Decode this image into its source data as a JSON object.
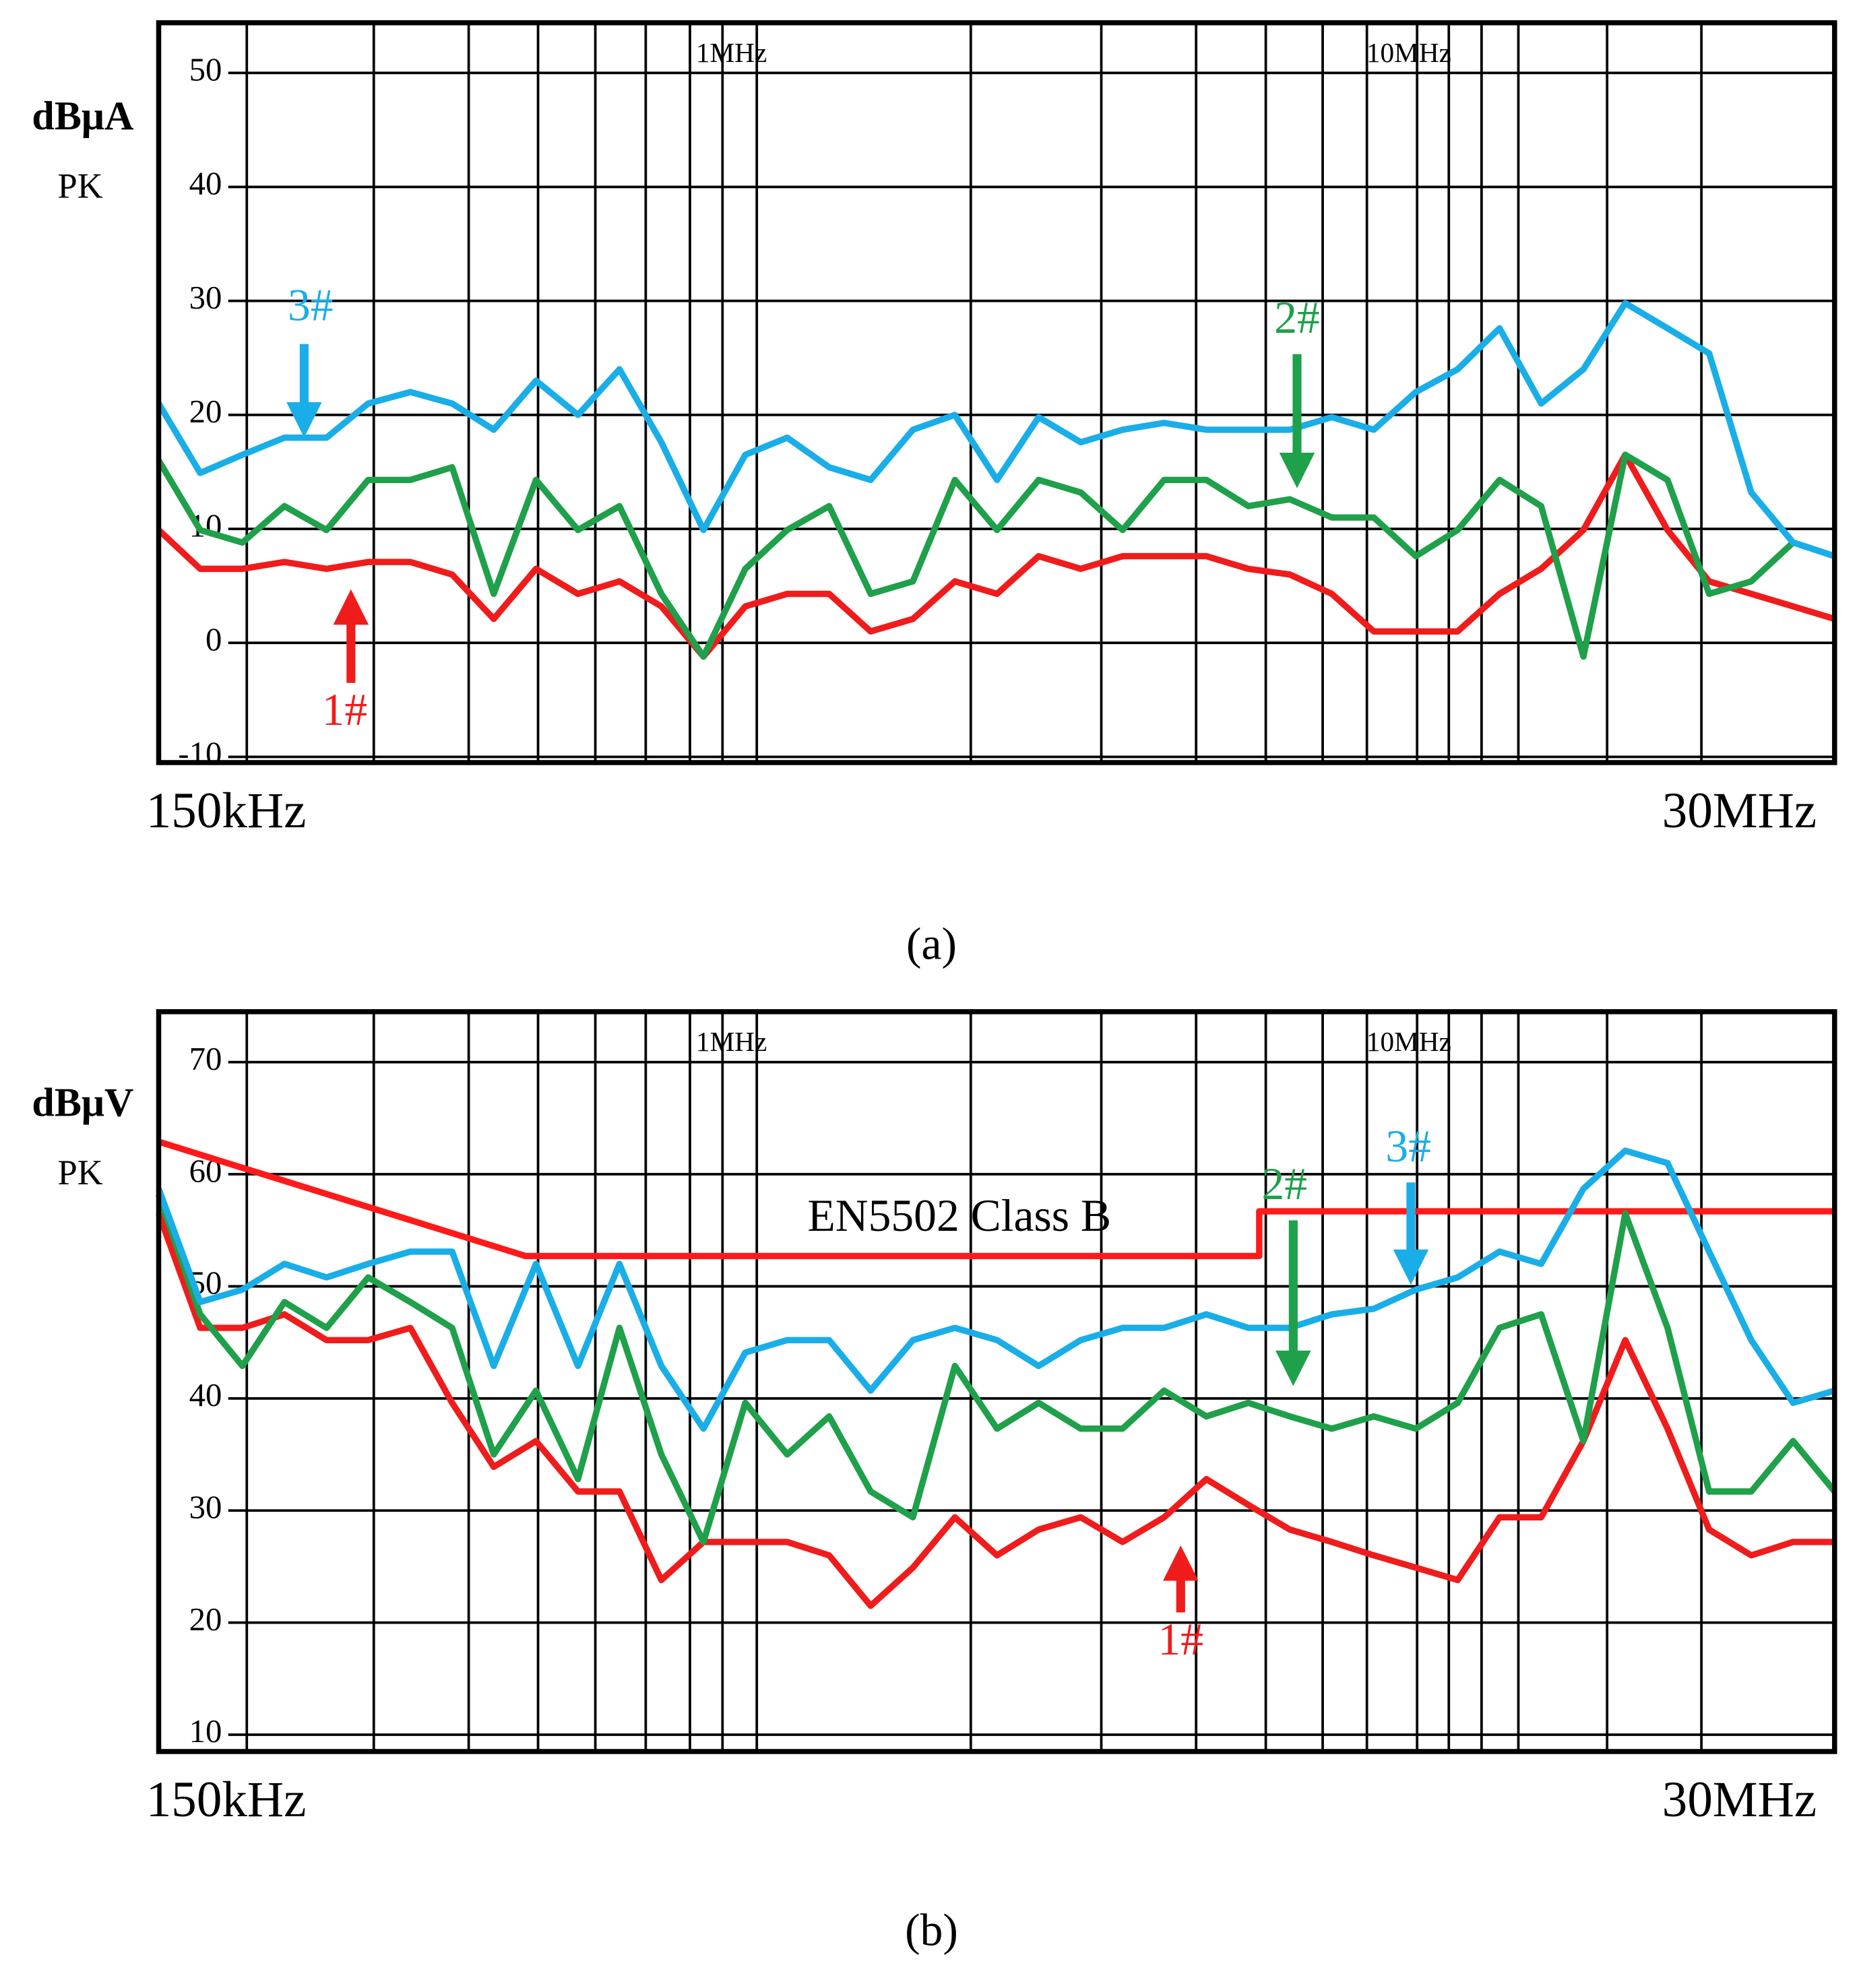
{
  "chart_data": [
    {
      "type": "line",
      "y_unit": "dBμA",
      "y_detector": "PK",
      "xscale": "log",
      "grid": true,
      "xlim": [
        0.15,
        47.4
      ],
      "ylim": [
        -10.5,
        54.4
      ],
      "xticks": [
        {
          "value": 0.15,
          "label": "150kHz"
        },
        {
          "value": 30,
          "label": "30MHz"
        }
      ],
      "xticks_top": [
        {
          "value": 1,
          "label": "1MHz"
        },
        {
          "value": 10,
          "label": "10MHz"
        }
      ],
      "xminor": [
        0.203,
        0.314,
        0.435,
        0.552,
        0.672,
        0.799,
        0.93,
        1.04,
        1.17,
        2.44,
        3.82,
        5.29,
        6.72,
        8.17,
        9.51,
        11.3,
        12.6,
        14.1,
        16.0,
        21.7,
        30.0
      ],
      "yticks": [
        -10,
        0,
        10,
        20,
        30,
        40,
        50
      ],
      "x": [
        0.15,
        0.173,
        0.2,
        0.231,
        0.267,
        0.308,
        0.356,
        0.411,
        0.474,
        0.548,
        0.633,
        0.73,
        0.843,
        0.974,
        1.125,
        1.299,
        1.5,
        1.73,
        2.0,
        2.31,
        2.67,
        3.08,
        3.56,
        4.11,
        4.74,
        5.48,
        6.33,
        7.3,
        8.43,
        9.74,
        11.25,
        12.99,
        15,
        17.3,
        20,
        23.1,
        26.7,
        30.8,
        35.6,
        41.1,
        47.4
      ],
      "series": [
        {
          "name": "3#",
          "color": "#19aee8",
          "values": [
            21,
            14.9,
            16.5,
            18,
            18,
            21,
            22,
            21,
            18.7,
            23,
            20,
            24,
            17.6,
            9.9,
            16.5,
            18,
            15.4,
            14.3,
            18.7,
            20,
            14.3,
            19.8,
            17.6,
            18.7,
            19.3,
            18.7,
            18.7,
            18.7,
            19.8,
            18.7,
            22,
            24,
            27.6,
            21,
            24,
            29.8,
            27.6,
            25.4,
            13.2,
            8.8,
            7.6
          ]
        },
        {
          "name": "2#",
          "color": "#1fa04a",
          "values": [
            16,
            9.9,
            8.8,
            12,
            9.9,
            14.3,
            14.3,
            15.4,
            4.3,
            14.3,
            9.9,
            12,
            4.3,
            -1.2,
            6.5,
            9.9,
            12,
            4.3,
            5.4,
            14.3,
            9.9,
            14.3,
            13.2,
            9.9,
            14.3,
            14.3,
            12,
            12.6,
            11,
            11,
            7.6,
            9.9,
            14.3,
            12,
            -1.2,
            16.5,
            14.3,
            4.3,
            5.4,
            8.8,
            7.6
          ]
        },
        {
          "name": "1#",
          "color": "#f01c1c",
          "values": [
            9.9,
            6.5,
            6.5,
            7.1,
            6.5,
            7.1,
            7.1,
            6,
            2.1,
            6.5,
            4.3,
            5.4,
            3.2,
            -1.2,
            3.2,
            4.3,
            4.3,
            1,
            2.1,
            5.4,
            4.3,
            7.6,
            6.5,
            7.6,
            7.6,
            7.6,
            6.5,
            6,
            4.3,
            1,
            1,
            1,
            4.3,
            6.5,
            9.9,
            16.5,
            9.9,
            5.4,
            4.3,
            3.2,
            2.1
          ]
        }
      ]
    },
    {
      "type": "line",
      "y_unit": "dBμV",
      "y_detector": "PK",
      "xscale": "log",
      "grid": true,
      "xlim": [
        0.15,
        47.4
      ],
      "ylim": [
        8.5,
        74.5
      ],
      "xticks": [
        {
          "value": 0.15,
          "label": "150kHz"
        },
        {
          "value": 30,
          "label": "30MHz"
        }
      ],
      "xticks_top": [
        {
          "value": 1,
          "label": "1MHz"
        },
        {
          "value": 10,
          "label": "10MHz"
        }
      ],
      "xminor": [
        0.203,
        0.314,
        0.435,
        0.552,
        0.672,
        0.799,
        0.93,
        1.04,
        1.17,
        2.44,
        3.82,
        5.29,
        6.72,
        8.17,
        9.51,
        11.3,
        12.6,
        14.1,
        16.0,
        21.7,
        30.0
      ],
      "yticks": [
        10,
        20,
        30,
        40,
        50,
        60,
        70
      ],
      "x": [
        0.15,
        0.173,
        0.2,
        0.231,
        0.267,
        0.308,
        0.356,
        0.411,
        0.474,
        0.548,
        0.633,
        0.73,
        0.843,
        0.974,
        1.125,
        1.299,
        1.5,
        1.73,
        2.0,
        2.31,
        2.67,
        3.08,
        3.56,
        4.11,
        4.74,
        5.48,
        6.33,
        7.3,
        8.43,
        9.74,
        11.25,
        12.99,
        15,
        17.3,
        20,
        23.1,
        26.7,
        30.8,
        35.6,
        41.1,
        47.4
      ],
      "series": [
        {
          "name": "3#",
          "color": "#19aee8",
          "values": [
            58.7,
            48.6,
            49.7,
            52,
            50.8,
            52,
            53.1,
            53.1,
            42.9,
            52,
            42.9,
            52,
            42.9,
            37.3,
            44.1,
            45.2,
            45.2,
            40.7,
            45.2,
            46.3,
            45.2,
            42.9,
            45.2,
            46.3,
            46.3,
            47.5,
            46.3,
            46.3,
            47.5,
            48,
            49.7,
            50.8,
            53.1,
            52,
            58.7,
            62.1,
            61,
            53.1,
            45.2,
            39.6,
            40.7
          ]
        },
        {
          "name": "2#",
          "color": "#1fa04a",
          "values": [
            58.2,
            47.5,
            42.9,
            48.6,
            46.3,
            50.8,
            48.6,
            46.3,
            35,
            40.7,
            32.8,
            46.3,
            35,
            27.2,
            39.6,
            35,
            38.4,
            31.7,
            29.4,
            42.9,
            37.3,
            39.6,
            37.3,
            37.3,
            40.7,
            38.4,
            39.6,
            38.4,
            37.3,
            38.4,
            37.3,
            39.6,
            46.3,
            47.5,
            36.2,
            56.5,
            46.3,
            31.7,
            31.7,
            36.2,
            31.7
          ]
        },
        {
          "name": "1#",
          "color": "#f01c1c",
          "values": [
            56.5,
            46.3,
            46.3,
            47.5,
            45.2,
            45.2,
            46.3,
            39.6,
            33.9,
            36.2,
            31.7,
            31.7,
            23.8,
            27.2,
            27.2,
            27.2,
            26,
            21.5,
            24.9,
            29.4,
            26,
            28.3,
            29.4,
            27.2,
            29.4,
            32.8,
            30.5,
            28.3,
            27.2,
            26,
            24.9,
            23.8,
            29.4,
            29.4,
            36.2,
            45.2,
            37.3,
            28.3,
            26,
            27.2,
            27.2
          ]
        },
        {
          "name": "EN5502 Class B",
          "color": "#ff1a1a",
          "x": [
            0.15,
            0.529,
            6.57,
            6.57,
            47.4
          ],
          "values": [
            62.9,
            52.7,
            52.7,
            56.7,
            56.7
          ]
        }
      ]
    }
  ],
  "captions": [
    "(a)",
    "(b)"
  ]
}
